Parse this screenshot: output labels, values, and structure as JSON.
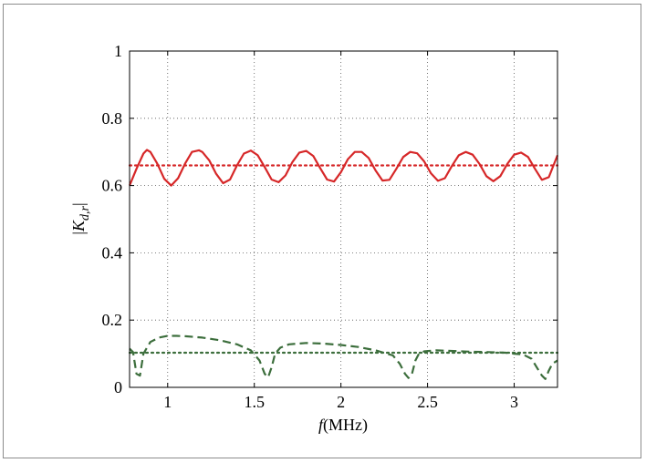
{
  "chart_data": {
    "type": "line",
    "xlabel": "f (MHz)",
    "xlabel_italic": "f",
    "xlabel_rest": "(MHz)",
    "ylabel": "|K_{d,r}|",
    "ylabel_K": "K",
    "ylabel_sub": "d,r",
    "xlim": [
      0.78,
      3.25
    ],
    "ylim": [
      0,
      1
    ],
    "xticks": [
      1,
      1.5,
      2,
      2.5,
      3
    ],
    "xtick_labels": [
      "1",
      "1.5",
      "2",
      "2.5",
      "3"
    ],
    "yticks": [
      0,
      0.2,
      0.4,
      0.6,
      0.8,
      1
    ],
    "ytick_labels": [
      "0",
      "0.2",
      "0.4",
      "0.6",
      "0.8",
      "1"
    ],
    "grid": true,
    "series": [
      {
        "style": "solid",
        "color": "#d62728",
        "x": [
          0.78,
          0.82,
          0.86,
          0.88,
          0.9,
          0.94,
          0.98,
          1.02,
          1.06,
          1.1,
          1.14,
          1.18,
          1.2,
          1.24,
          1.28,
          1.32,
          1.36,
          1.4,
          1.44,
          1.48,
          1.52,
          1.56,
          1.6,
          1.64,
          1.68,
          1.72,
          1.76,
          1.8,
          1.84,
          1.88,
          1.92,
          1.96,
          2.0,
          2.04,
          2.08,
          2.12,
          2.16,
          2.2,
          2.24,
          2.28,
          2.32,
          2.36,
          2.4,
          2.44,
          2.48,
          2.52,
          2.56,
          2.6,
          2.64,
          2.68,
          2.72,
          2.76,
          2.8,
          2.84,
          2.88,
          2.92,
          2.96,
          3.0,
          3.04,
          3.08,
          3.12,
          3.16,
          3.2,
          3.25
        ],
        "y": [
          0.6,
          0.65,
          0.695,
          0.706,
          0.7,
          0.665,
          0.62,
          0.6,
          0.622,
          0.665,
          0.7,
          0.705,
          0.7,
          0.675,
          0.635,
          0.607,
          0.618,
          0.66,
          0.695,
          0.704,
          0.69,
          0.655,
          0.618,
          0.61,
          0.63,
          0.67,
          0.698,
          0.703,
          0.688,
          0.652,
          0.618,
          0.612,
          0.64,
          0.678,
          0.7,
          0.7,
          0.682,
          0.645,
          0.615,
          0.617,
          0.65,
          0.685,
          0.7,
          0.696,
          0.672,
          0.636,
          0.614,
          0.622,
          0.658,
          0.69,
          0.7,
          0.692,
          0.664,
          0.628,
          0.613,
          0.628,
          0.664,
          0.692,
          0.698,
          0.685,
          0.65,
          0.617,
          0.625,
          0.69
        ]
      },
      {
        "style": "dotted",
        "color": "#d62728",
        "x": [
          0.78,
          3.25
        ],
        "y": [
          0.66,
          0.66
        ]
      },
      {
        "style": "dashed",
        "color": "#3c6e3c",
        "x": [
          0.78,
          0.8,
          0.82,
          0.84,
          0.86,
          0.9,
          0.95,
          1.0,
          1.05,
          1.1,
          1.2,
          1.3,
          1.4,
          1.48,
          1.53,
          1.56,
          1.58,
          1.6,
          1.62,
          1.65,
          1.7,
          1.8,
          1.9,
          2.0,
          2.1,
          2.2,
          2.3,
          2.34,
          2.37,
          2.39,
          2.41,
          2.43,
          2.45,
          2.48,
          2.55,
          2.65,
          2.75,
          2.85,
          2.95,
          3.0,
          3.05,
          3.1,
          3.13,
          3.16,
          3.18,
          3.2,
          3.22,
          3.25
        ],
        "y": [
          0.115,
          0.105,
          0.04,
          0.035,
          0.1,
          0.135,
          0.148,
          0.153,
          0.153,
          0.152,
          0.148,
          0.14,
          0.128,
          0.11,
          0.08,
          0.04,
          0.03,
          0.06,
          0.1,
          0.118,
          0.128,
          0.132,
          0.13,
          0.126,
          0.12,
          0.11,
          0.095,
          0.07,
          0.04,
          0.028,
          0.04,
          0.08,
          0.1,
          0.107,
          0.11,
          0.108,
          0.106,
          0.105,
          0.103,
          0.1,
          0.098,
          0.085,
          0.06,
          0.035,
          0.025,
          0.05,
          0.07,
          0.08
        ]
      },
      {
        "style": "dotted",
        "color": "#3c6e3c",
        "x": [
          0.78,
          3.25
        ],
        "y": [
          0.103,
          0.103
        ]
      }
    ]
  }
}
